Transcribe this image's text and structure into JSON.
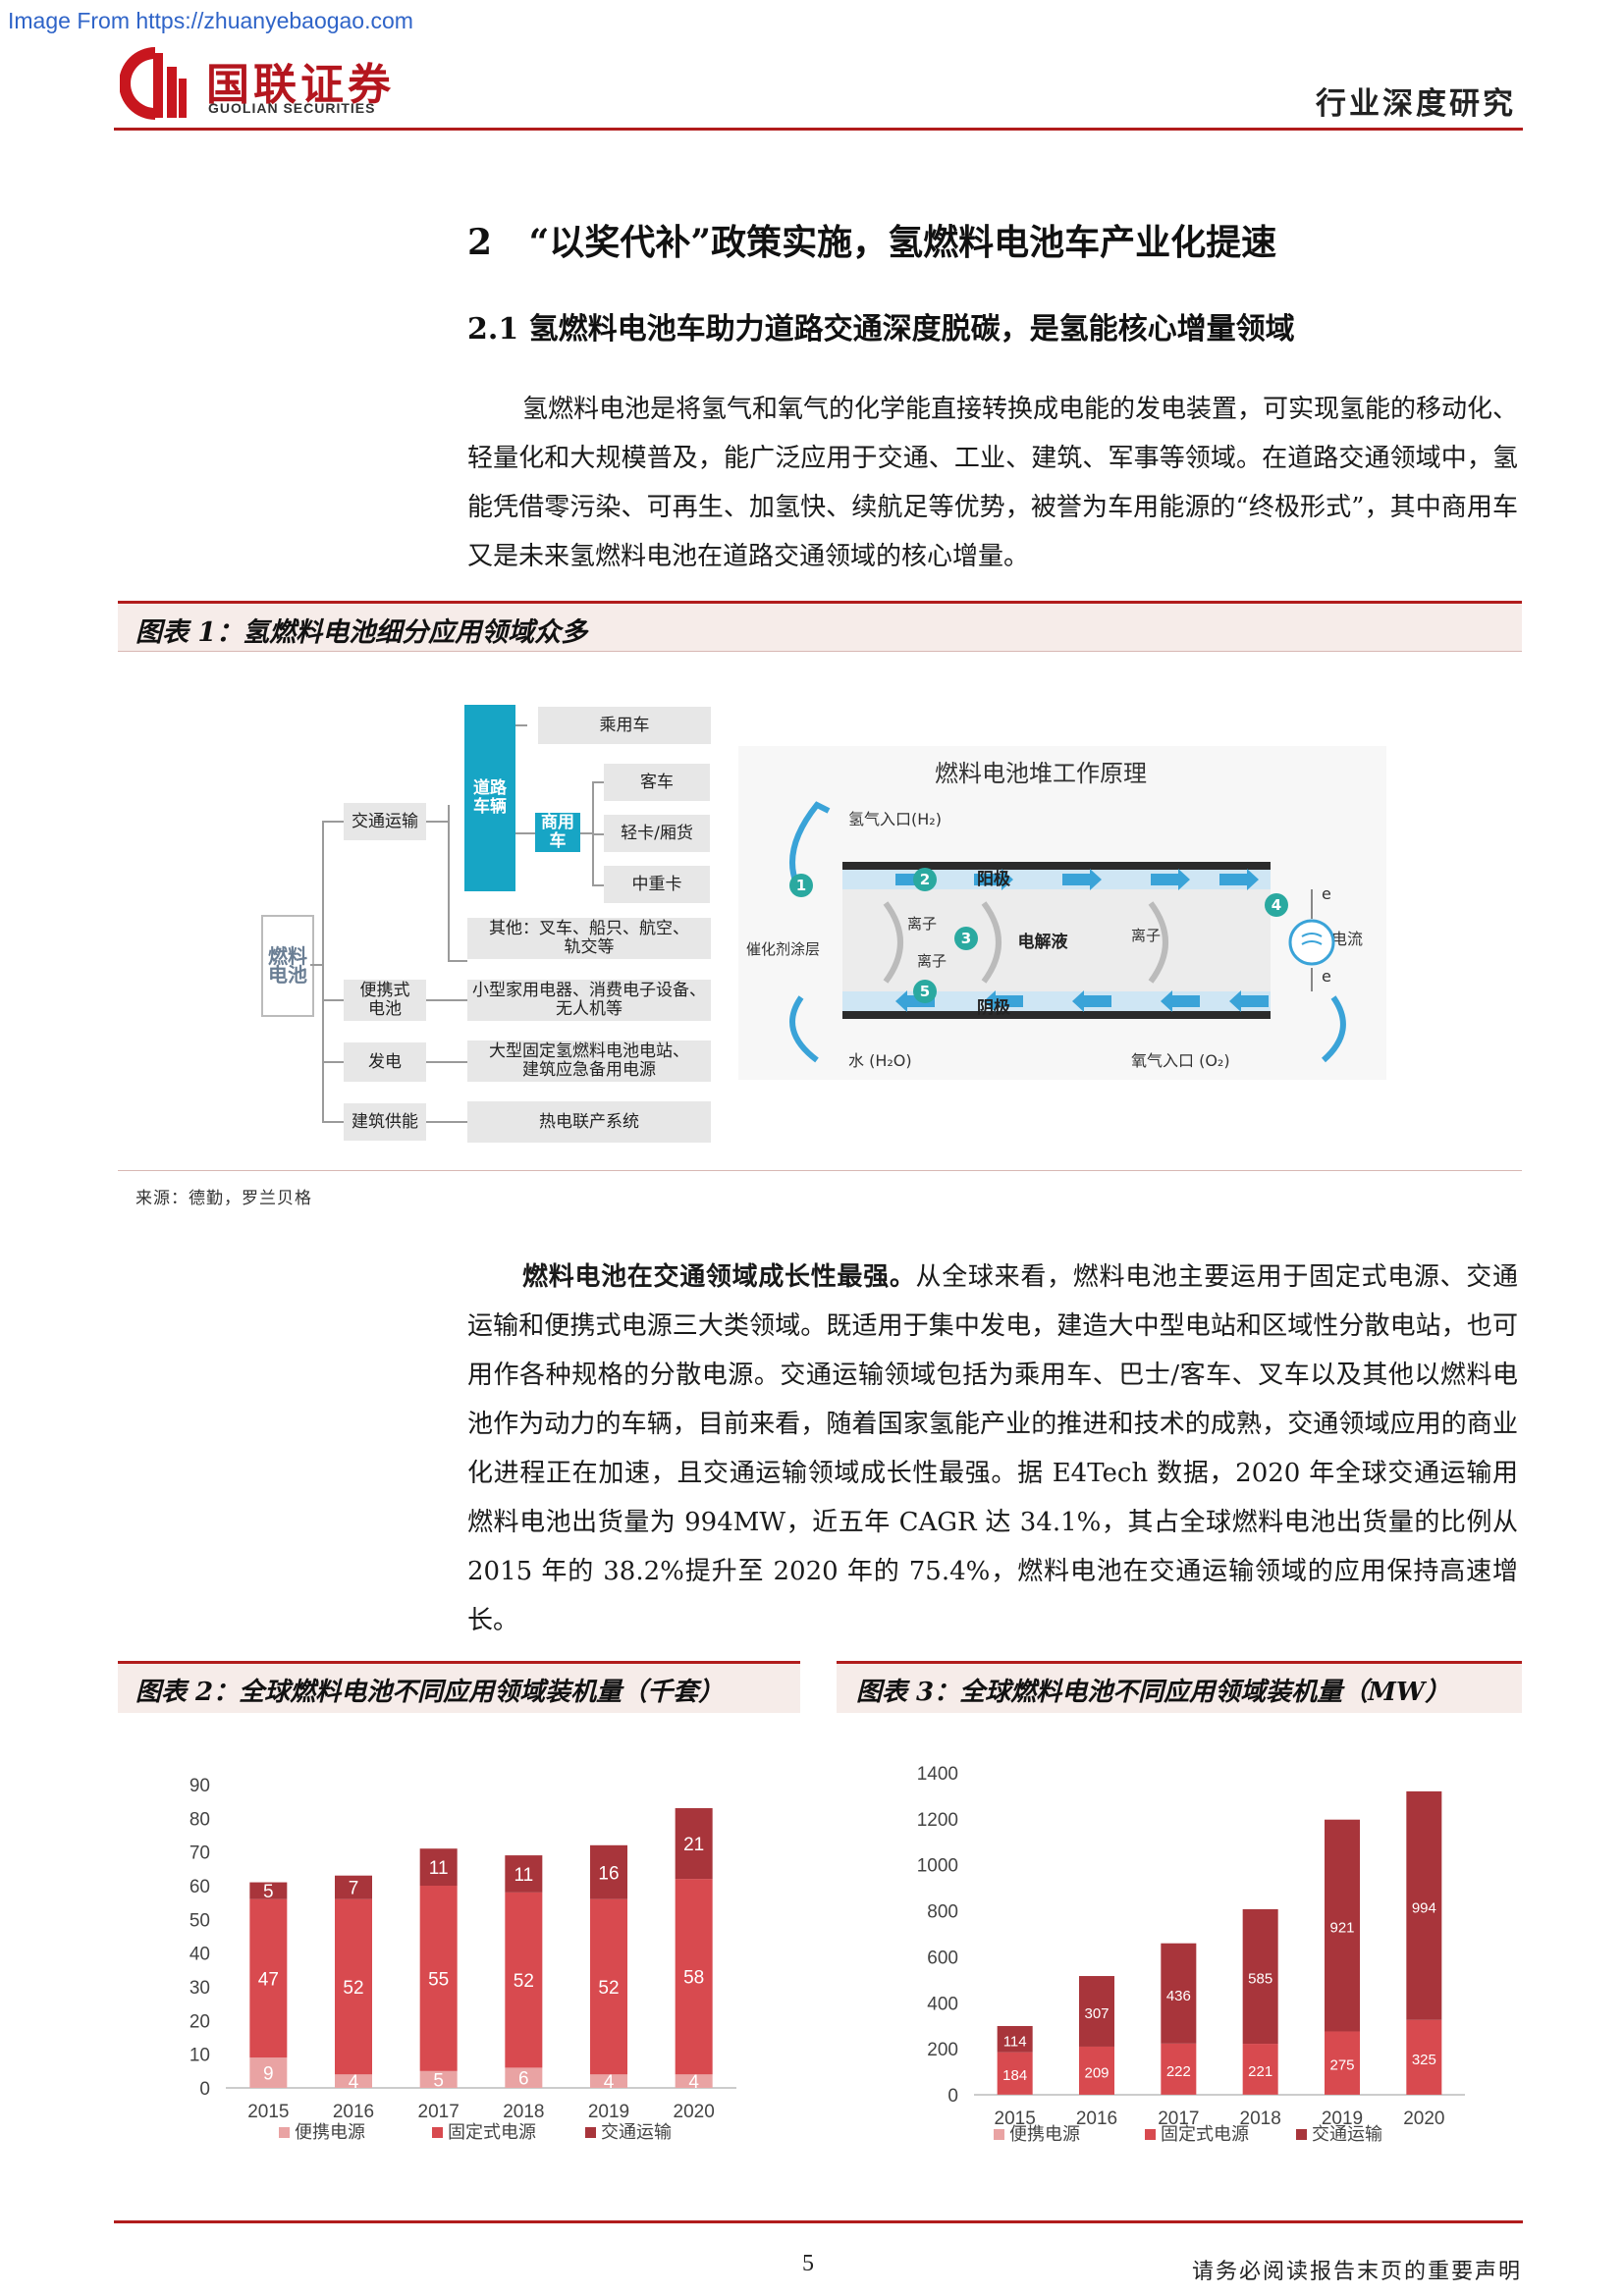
{
  "watermark": "Image From https://zhuanyebaogao.com",
  "header": {
    "brand_cn": "国联证券",
    "brand_en": "GUOLIAN SECURITIES",
    "report_type": "行业深度研究"
  },
  "section": {
    "h1": "2   “以奖代补”政策实施，氢燃料电池车产业化提速",
    "h2": "2.1 氢燃料电池车助力道路交通深度脱碳，是氢能核心增量领域",
    "para1": "氢燃料电池是将氢气和氧气的化学能直接转换成电能的发电装置，可实现氢能的移动化、轻量化和大规模普及，能广泛应用于交通、工业、建筑、军事等领域。在道路交通领域中，氢能凭借零污染、可再生、加氢快、续航足等优势，被誉为车用能源的“终极形式”，其中商用车又是未来氢燃料电池在道路交通领域的核心增量。"
  },
  "figure1": {
    "title": "图表 1：氢燃料电池细分应用领域众多",
    "source": "来源：德勤，罗兰贝格",
    "tree": {
      "root": "燃料\n电池",
      "transport": "交通运输",
      "road": "道路\n车辆",
      "passenger": "乘用车",
      "commercial": "商用\n车",
      "bus": "客车",
      "light": "轻卡/厢货",
      "heavy": "中重卡",
      "others": "其他：叉车、船只、航空、\n轨交等",
      "portable": "便携式\n电池",
      "portable_desc": "小型家用电器、消费电子设备、\n无人机等",
      "power": "发电",
      "power_desc": "大型固定氢燃料电池电站、\n建筑应急备用电源",
      "building": "建筑供能",
      "building_desc": "热电联产系统"
    },
    "diagram": {
      "title": "燃料电池堆工作原理",
      "h2_in": "氢气入口(H₂)",
      "anode": "阳极",
      "catalyst": "催化剂涂层",
      "ion1": "离子",
      "ion2": "离子",
      "ion3": "离子",
      "electrolyte": "电解液",
      "cathode": "阴极",
      "water": "水 (H₂O)",
      "o2_in": "氧气入口 (O₂)",
      "current": "电流",
      "e1": "e",
      "e2": "e",
      "n1": "1",
      "n2": "2",
      "n3": "3",
      "n4": "4",
      "n5": "5"
    }
  },
  "para2": {
    "lead": "燃料电池在交通领域成长性最强。",
    "text": "从全球来看，燃料电池主要运用于固定式电源、交通运输和便携式电源三大类领域。既适用于集中发电，建造大中型电站和区域性分散电站，也可用作各种规格的分散电源。交通运输领域包括为乘用车、巴士/客车、叉车以及其他以燃料电池作为动力的车辆，目前来看，随着国家氢能产业的推进和技术的成熟，交通领域应用的商业化进程正在加速，且交通运输领域成长性最强。据 E4Tech 数据，2020 年全球交通运输用燃料电池出货量为 994MW，近五年 CAGR 达 34.1%，其占全球燃料电池出货量的比例从 2015 年的 38.2%提升至 2020 年的 75.4%，燃料电池在交通运输领域的应用保持高速增长。"
  },
  "figure2": {
    "title": "图表 2：全球燃料电池不同应用领域装机量（千套）"
  },
  "figure3": {
    "title": "图表 3：全球燃料电池不同应用领域装机量（MW）"
  },
  "colors": {
    "portable": "#e9a3a3",
    "stationary": "#d84a4f",
    "transport": "#a8353b",
    "rule": "#b11c1c"
  },
  "chart_data": [
    {
      "type": "bar",
      "stacked": true,
      "categories": [
        "2015",
        "2016",
        "2017",
        "2018",
        "2019",
        "2020"
      ],
      "series": [
        {
          "name": "便携电源",
          "values": [
            9,
            4,
            5,
            6,
            4,
            4
          ]
        },
        {
          "name": "固定式电源",
          "values": [
            47,
            52,
            55,
            52,
            52,
            58
          ]
        },
        {
          "name": "交通运输",
          "values": [
            5,
            7,
            11,
            11,
            16,
            21
          ]
        }
      ],
      "ylim": [
        0,
        90
      ],
      "yticks": [
        0,
        10,
        20,
        30,
        40,
        50,
        60,
        70,
        80,
        90
      ],
      "legend": "bottom"
    },
    {
      "type": "bar",
      "stacked": true,
      "categories": [
        "2015",
        "2016",
        "2017",
        "2018",
        "2019",
        "2020"
      ],
      "series": [
        {
          "name": "便携电源",
          "values": [
            0.9,
            0.3,
            0.6,
            0.7,
            0.4,
            0.4
          ]
        },
        {
          "name": "固定式电源",
          "values": [
            184,
            209,
            222,
            221,
            275,
            325
          ]
        },
        {
          "name": "交通运输",
          "values": [
            114,
            307,
            436,
            585,
            921,
            994
          ]
        }
      ],
      "ylim": [
        0,
        1400
      ],
      "yticks": [
        0,
        200,
        400,
        600,
        800,
        1000,
        1200,
        1400
      ],
      "legend": "bottom"
    }
  ],
  "footer": {
    "page": "5",
    "disclaimer": "请务必阅读报告末页的重要声明"
  }
}
